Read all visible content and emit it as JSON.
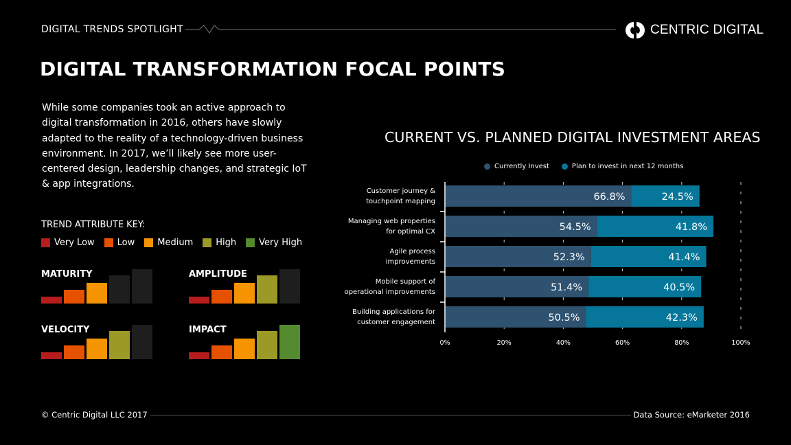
{
  "header": {
    "kicker": "DIGITAL TRENDS SPOTLIGHT",
    "brand": "CENTRIC DIGITAL"
  },
  "title": "DIGITAL TRANSFORMATION FOCAL POINTS",
  "intro": "While some companies took an active approach to digital transformation in 2016, others have slowly adapted to the reality of a technology-driven business environment. In 2017, we’ll likely see more user-centered design, leadership changes, and strategic IoT & app integrations.",
  "trend_key": {
    "title": "TREND ATTRIBUTE KEY:",
    "levels": [
      {
        "label": "Very Low",
        "color": "#b71c1c"
      },
      {
        "label": "Low",
        "color": "#e65100"
      },
      {
        "label": "Medium",
        "color": "#f59400"
      },
      {
        "label": "High",
        "color": "#9c9a26"
      },
      {
        "label": "Very High",
        "color": "#558b2f"
      }
    ],
    "inactive_color": "#1e1e1e",
    "attributes": [
      {
        "label": "MATURITY",
        "level": 3
      },
      {
        "label": "AMPLITUDE",
        "level": 4
      },
      {
        "label": "VELOCITY",
        "level": 4
      },
      {
        "label": "IMPACT",
        "level": 5
      }
    ]
  },
  "chart_data": {
    "type": "bar",
    "orientation": "horizontal",
    "stacked": true,
    "title": "CURRENT VS. PLANNED DIGITAL INVESTMENT AREAS",
    "categories": [
      "Customer journey & touchpoint mapping",
      "Managing web properties for optimal CX",
      "Agile process improvements",
      "Mobile support of operational improvements",
      "Building applications for customer engagement"
    ],
    "category_lines": [
      [
        "Customer journey &",
        "touchpoint mapping"
      ],
      [
        "Managing web properties",
        "for optimal CX"
      ],
      [
        "Agile process",
        "improvements"
      ],
      [
        "Mobile support of",
        "operational improvements"
      ],
      [
        "Building applications for",
        "customer engagement"
      ]
    ],
    "series": [
      {
        "name": "Currently Invest",
        "color": "#2e5270",
        "values": [
          66.8,
          54.5,
          52.3,
          51.4,
          50.5
        ]
      },
      {
        "name": "Plan to invest in next 12 months",
        "color": "#06779a",
        "values": [
          24.5,
          41.8,
          41.4,
          40.5,
          42.3
        ]
      }
    ],
    "xlim": [
      0,
      100
    ],
    "xticks": [
      "0%",
      "20%",
      "40%",
      "60%",
      "80%",
      "100%"
    ],
    "grid": true,
    "legend": "top"
  },
  "footer": {
    "copyright": "© Centric Digital LLC 2017",
    "source": "Data Source: eMarketer 2016"
  }
}
